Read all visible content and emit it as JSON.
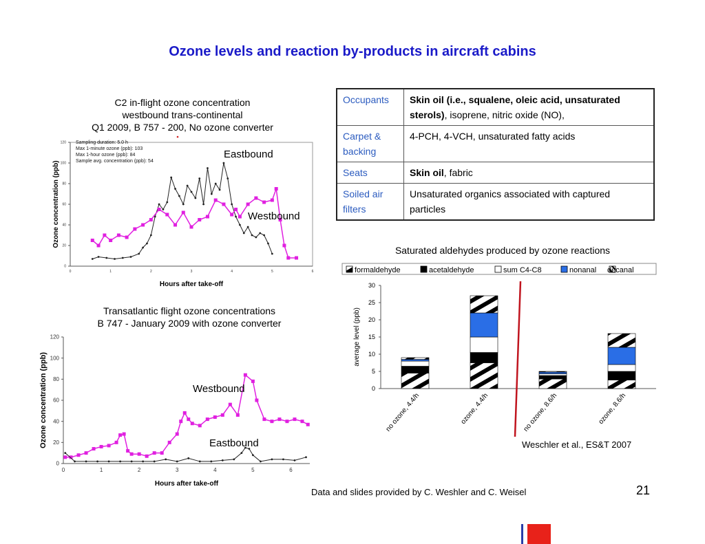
{
  "slide": {
    "title": "Ozone levels and reaction by-products in aircraft cabins",
    "page_number": "21",
    "credit": "Data and slides provided by C. Weshler and C. Weisel"
  },
  "chart1": {
    "caption": [
      "C2 in-flight ozone concentration",
      "westbound trans-continental",
      "Q1 2009, B 757 - 200, No ozone converter"
    ],
    "notes": [
      "Sampling duration: 5.0 h",
      "Max 1-minute ozone (ppb): 103",
      "Max 1-hour ozone (ppb): 84",
      "Sample avg. concentration (ppb): 54"
    ],
    "label_eastbound": "Eastbound",
    "label_westbound": "Westbound"
  },
  "chart2": {
    "caption": [
      "Transatlantic flight ozone concentrations",
      "B 747 - January 2009 with ozone converter"
    ],
    "label_westbound": "Westbound",
    "label_eastbound": "Eastbound"
  },
  "chart3": {
    "caption": "Saturated aldehydes produced by ozone reactions",
    "citation": "Weschler et al., ES&T 2007"
  },
  "table": {
    "rows": [
      {
        "category": "Occupants",
        "desc_bold": "Skin oil (i.e., squalene, oleic acid, unsaturated sterols)",
        "desc_rest": ", isoprene, nitric oxide (NO),"
      },
      {
        "category": "Carpet & backing",
        "desc_bold": "",
        "desc_rest": "4-PCH, 4-VCH, unsaturated fatty acids"
      },
      {
        "category": "Seats",
        "desc_bold": "Skin oil",
        "desc_rest": ", fabric"
      },
      {
        "category": "Soiled air filters",
        "desc_bold": "",
        "desc_rest": "Unsaturated organics associated with captured particles"
      }
    ]
  },
  "chart_data": [
    {
      "type": "line",
      "xlabel": "Hours after take-off",
      "ylabel": "Ozone concentration (ppb)",
      "xlim": [
        0,
        6
      ],
      "ylim": [
        0,
        120
      ],
      "x_ticks": [
        0,
        1,
        2,
        3,
        4,
        5,
        6
      ],
      "y_ticks": [
        0,
        20,
        40,
        60,
        80,
        100,
        120
      ],
      "series": [
        {
          "name": "Eastbound",
          "color": "#222222",
          "x": [
            0.55,
            0.7,
            0.9,
            1.1,
            1.3,
            1.5,
            1.7,
            1.8,
            1.9,
            2.0,
            2.1,
            2.2,
            2.3,
            2.4,
            2.5,
            2.6,
            2.7,
            2.8,
            2.9,
            3.0,
            3.1,
            3.2,
            3.3,
            3.4,
            3.5,
            3.6,
            3.7,
            3.8,
            3.9,
            4.0,
            4.1,
            4.2,
            4.3,
            4.4,
            4.5,
            4.6,
            4.7,
            4.8,
            4.9,
            5.0
          ],
          "y": [
            7,
            9,
            8,
            7,
            8,
            9,
            12,
            18,
            22,
            30,
            48,
            60,
            55,
            62,
            86,
            75,
            68,
            60,
            78,
            72,
            66,
            85,
            60,
            95,
            70,
            80,
            74,
            100,
            85,
            60,
            48,
            40,
            32,
            38,
            30,
            28,
            32,
            30,
            22,
            12
          ]
        },
        {
          "name": "Westbound",
          "color": "#e020e0",
          "x": [
            0.55,
            0.7,
            0.85,
            1.0,
            1.2,
            1.4,
            1.6,
            1.8,
            2.0,
            2.2,
            2.4,
            2.6,
            2.8,
            3.0,
            3.2,
            3.4,
            3.6,
            3.8,
            4.0,
            4.1,
            4.2,
            4.4,
            4.6,
            4.8,
            5.0,
            5.1,
            5.2,
            5.3,
            5.4,
            5.6
          ],
          "y": [
            25,
            20,
            30,
            25,
            30,
            28,
            36,
            40,
            45,
            55,
            50,
            40,
            52,
            38,
            45,
            48,
            64,
            60,
            50,
            55,
            48,
            60,
            66,
            62,
            64,
            75,
            45,
            20,
            8,
            8
          ]
        }
      ]
    },
    {
      "type": "line",
      "xlabel": "Hours after take-off",
      "ylabel": "Ozone concentration (ppb)",
      "xlim": [
        0,
        6.5
      ],
      "ylim": [
        0,
        120
      ],
      "x_ticks": [
        0,
        1,
        2,
        3,
        4,
        5,
        6
      ],
      "y_ticks": [
        0,
        20,
        40,
        60,
        80,
        100,
        120
      ],
      "series": [
        {
          "name": "Westbound",
          "color": "#e020e0",
          "x": [
            0.05,
            0.2,
            0.4,
            0.6,
            0.8,
            1.0,
            1.2,
            1.4,
            1.5,
            1.6,
            1.7,
            1.8,
            2.0,
            2.2,
            2.4,
            2.6,
            2.8,
            3.0,
            3.1,
            3.2,
            3.3,
            3.4,
            3.6,
            3.8,
            4.0,
            4.2,
            4.4,
            4.6,
            4.8,
            5.0,
            5.1,
            5.3,
            5.5,
            5.7,
            5.9,
            6.1,
            6.3,
            6.45
          ],
          "y": [
            6,
            6,
            8,
            10,
            14,
            16,
            17,
            20,
            27,
            28,
            12,
            9,
            9,
            7,
            10,
            10,
            20,
            28,
            40,
            48,
            42,
            38,
            36,
            42,
            44,
            46,
            56,
            46,
            84,
            78,
            60,
            42,
            40,
            42,
            40,
            42,
            40,
            37
          ]
        },
        {
          "name": "Eastbound",
          "color": "#222222",
          "x": [
            0.05,
            0.3,
            0.6,
            0.9,
            1.2,
            1.5,
            1.8,
            2.1,
            2.4,
            2.7,
            3.0,
            3.3,
            3.6,
            3.9,
            4.2,
            4.5,
            4.7,
            4.8,
            4.9,
            5.0,
            5.2,
            5.5,
            5.8,
            6.1,
            6.4
          ],
          "y": [
            10,
            2,
            2,
            2,
            2,
            2,
            2,
            2,
            2,
            4,
            2,
            5,
            2,
            2,
            3,
            4,
            10,
            15,
            14,
            8,
            2,
            4,
            4,
            3,
            6
          ]
        }
      ]
    },
    {
      "type": "bar",
      "ylabel": "average level (ppb)",
      "ylim": [
        0,
        30
      ],
      "y_ticks": [
        0,
        5,
        10,
        15,
        20,
        25,
        30
      ],
      "categories": [
        "no ozone, 4.4/h",
        "ozone, 4.4/h",
        "no ozone, 8.6/h",
        "ozone, 8.6/h"
      ],
      "series": [
        {
          "name": "formaldehyde",
          "values": [
            4.5,
            7.5,
            2.8,
            2.5
          ]
        },
        {
          "name": "acetaldehyde",
          "values": [
            2.0,
            3.0,
            1.0,
            2.5
          ]
        },
        {
          "name": "sum C4-C8",
          "values": [
            1.5,
            4.5,
            0.5,
            2.0
          ]
        },
        {
          "name": "nonanal",
          "values": [
            0.5,
            7.0,
            0.5,
            5.0
          ]
        },
        {
          "name": "decanal",
          "values": [
            0.5,
            5.0,
            0.2,
            4.0
          ]
        }
      ]
    }
  ]
}
